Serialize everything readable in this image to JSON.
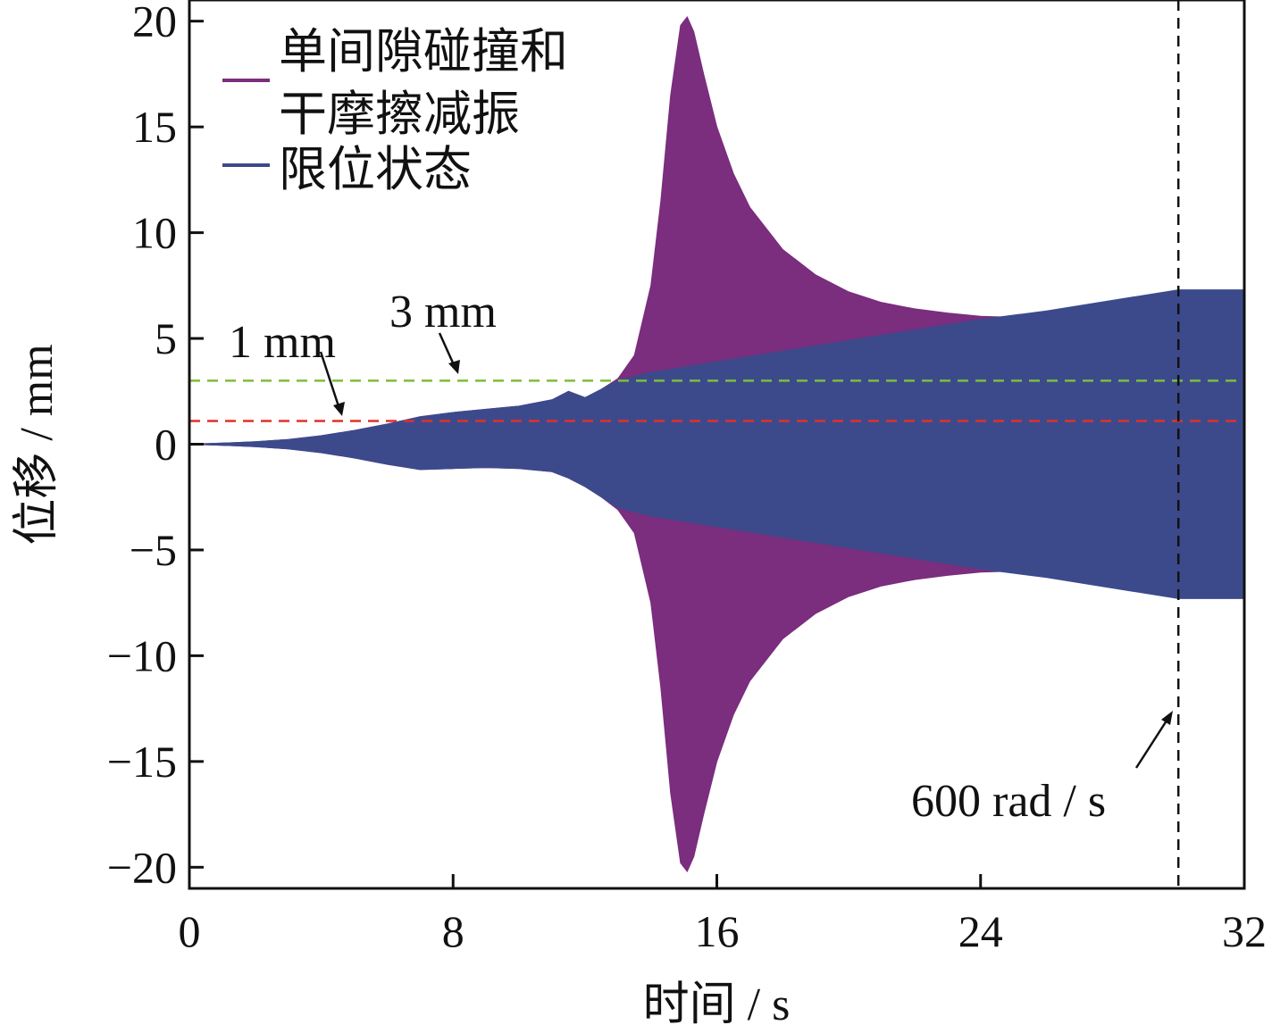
{
  "chart_data": {
    "type": "area",
    "xlabel": "时间 / s",
    "ylabel": "位移 / mm",
    "xlim": [
      0,
      32
    ],
    "ylim": [
      -21,
      21
    ],
    "x_ticks": [
      0,
      8,
      16,
      24,
      32
    ],
    "y_ticks": [
      20,
      15,
      10,
      5,
      0,
      -5,
      -10,
      -15,
      -20
    ],
    "y_tick_labels": [
      "20",
      "15",
      "10",
      "5",
      "0",
      "−5",
      "−10",
      "−15",
      "−20"
    ],
    "grid": false,
    "legend_position": "top-left",
    "series": [
      {
        "name": "单间隙碰撞和干摩擦减振",
        "name_lines": [
          "单间隙碰撞和",
          "干摩擦减振"
        ],
        "color": "#7b2d7e",
        "envelope_x": [
          0,
          1,
          2,
          3,
          4,
          5,
          6,
          7,
          8,
          9,
          10,
          11,
          11.5,
          12,
          12.5,
          13,
          13.5,
          14,
          14.3,
          14.6,
          14.9,
          15.1,
          15.3,
          15.6,
          16,
          16.5,
          17,
          18,
          19,
          20,
          21,
          22,
          23,
          24,
          25,
          26
        ],
        "envelope_upper": [
          0,
          0.05,
          0.12,
          0.22,
          0.4,
          0.65,
          0.95,
          1.3,
          1.5,
          1.65,
          1.8,
          2.1,
          2.5,
          2.2,
          2.6,
          3.1,
          4.2,
          7.5,
          11.5,
          16.5,
          19.8,
          20.2,
          19.5,
          17.5,
          15.0,
          12.8,
          11.2,
          9.2,
          8.0,
          7.2,
          6.7,
          6.4,
          6.2,
          6.05,
          6.0,
          6.0
        ],
        "envelope_lower": [
          0,
          -0.05,
          -0.12,
          -0.22,
          -0.4,
          -0.65,
          -0.95,
          -1.2,
          -1.15,
          -1.1,
          -1.15,
          -1.3,
          -1.6,
          -2.0,
          -2.5,
          -3.1,
          -4.2,
          -7.5,
          -11.5,
          -16.5,
          -19.8,
          -20.2,
          -19.5,
          -17.5,
          -15.0,
          -12.8,
          -11.2,
          -9.2,
          -8.0,
          -7.2,
          -6.7,
          -6.4,
          -6.2,
          -6.05,
          -6.0,
          -6.0
        ]
      },
      {
        "name": "限位状态",
        "color": "#3c4a8c",
        "envelope_x": [
          0,
          1,
          2,
          3,
          4,
          5,
          6,
          7,
          8,
          9,
          10,
          11,
          11.5,
          12,
          12.5,
          13,
          14,
          16,
          18,
          20,
          22,
          24,
          26,
          28,
          30,
          32
        ],
        "envelope_upper": [
          0,
          0.05,
          0.12,
          0.22,
          0.4,
          0.65,
          0.95,
          1.3,
          1.5,
          1.65,
          1.8,
          2.1,
          2.5,
          2.2,
          2.6,
          3.0,
          3.4,
          3.9,
          4.4,
          4.9,
          5.4,
          5.9,
          6.3,
          6.8,
          7.3,
          7.3
        ],
        "envelope_lower": [
          0,
          -0.05,
          -0.12,
          -0.22,
          -0.4,
          -0.65,
          -0.95,
          -1.2,
          -1.15,
          -1.1,
          -1.15,
          -1.3,
          -1.6,
          -2.0,
          -2.5,
          -3.0,
          -3.4,
          -3.9,
          -4.4,
          -4.9,
          -5.4,
          -5.9,
          -6.3,
          -6.8,
          -7.3,
          -7.3
        ]
      }
    ],
    "reference_lines": [
      {
        "label": "3 mm",
        "y": 3.0,
        "color": "#7dbd3c",
        "orientation": "horizontal"
      },
      {
        "label": "1 mm",
        "y": 1.1,
        "color": "#e0302a",
        "orientation": "horizontal"
      },
      {
        "label": "600 rad / s",
        "x": 30.0,
        "color": "#111111",
        "orientation": "vertical"
      }
    ]
  }
}
